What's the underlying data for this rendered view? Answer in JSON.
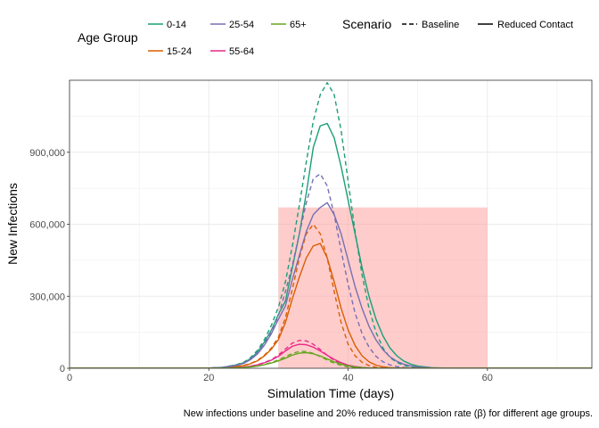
{
  "chart_data": {
    "type": "line",
    "title": "",
    "xlabel": "Simulation Time (days)",
    "ylabel": "New Infections",
    "caption": "New infections under baseline and 20% reduced transmission rate (β) for different age groups.",
    "xlim": [
      0,
      75
    ],
    "ylim": [
      0,
      1200000
    ],
    "x_ticks": [
      0,
      20,
      40,
      60
    ],
    "x_tick_labels": [
      "0",
      "20",
      "40",
      "60"
    ],
    "y_ticks": [
      0,
      300000,
      600000,
      900000
    ],
    "y_tick_labels": [
      "0",
      "300,000",
      "600,000",
      "900,000"
    ],
    "grid": true,
    "legend_position": "top",
    "legend": {
      "age_group_title": "Age Group",
      "scenario_title": "Scenario",
      "age_groups": [
        {
          "label": "0-14",
          "color": "#1b9e77"
        },
        {
          "label": "15-24",
          "color": "#d95f02"
        },
        {
          "label": "25-54",
          "color": "#7570b3"
        },
        {
          "label": "55-64",
          "color": "#e7298a"
        },
        {
          "label": "65+",
          "color": "#66a61e"
        }
      ],
      "scenarios": [
        {
          "label": "Baseline",
          "dash": "dashed"
        },
        {
          "label": "Reduced Contact",
          "dash": "solid"
        }
      ]
    },
    "highlight_region": {
      "x": [
        30,
        60
      ],
      "y": [
        0,
        670000
      ],
      "color": "#ff9999"
    },
    "x": [
      0,
      2,
      4,
      6,
      8,
      10,
      12,
      14,
      16,
      18,
      20,
      22,
      24,
      25,
      26,
      27,
      28,
      29,
      30,
      31,
      32,
      33,
      34,
      35,
      36,
      37,
      38,
      39,
      40,
      41,
      42,
      43,
      44,
      45,
      46,
      47,
      48,
      49,
      50,
      52,
      54,
      56,
      58,
      60,
      65,
      70,
      75
    ],
    "series": [
      {
        "name": "0-14",
        "scenario": "Baseline",
        "color": "#1b9e77",
        "values": [
          0,
          0,
          0,
          0,
          0,
          0,
          0,
          0,
          0,
          0,
          1000,
          4000,
          15000,
          25000,
          45000,
          75000,
          120000,
          180000,
          255000,
          360000,
          510000,
          680000,
          860000,
          1030000,
          1140000,
          1190000,
          1140000,
          990000,
          780000,
          570000,
          390000,
          250000,
          150000,
          85000,
          45000,
          24000,
          12000,
          6000,
          3000,
          800,
          200,
          0,
          0,
          0,
          0,
          0,
          0
        ]
      },
      {
        "name": "0-14",
        "scenario": "Reduced Contact",
        "color": "#1b9e77",
        "values": [
          0,
          0,
          0,
          0,
          0,
          0,
          0,
          0,
          0,
          0,
          1000,
          4000,
          14000,
          23000,
          40000,
          68000,
          110000,
          160000,
          225000,
          280000,
          420000,
          560000,
          730000,
          920000,
          1010000,
          1020000,
          960000,
          840000,
          700000,
          560000,
          420000,
          300000,
          205000,
          135000,
          85000,
          52000,
          30000,
          17000,
          9000,
          2500,
          600,
          0,
          0,
          0,
          0,
          0,
          0
        ]
      },
      {
        "name": "15-24",
        "scenario": "Baseline",
        "color": "#d95f02",
        "values": [
          0,
          0,
          0,
          0,
          0,
          0,
          0,
          0,
          0,
          0,
          500,
          2000,
          7000,
          12000,
          20000,
          33000,
          55000,
          85000,
          130000,
          210000,
          330000,
          460000,
          560000,
          600000,
          560000,
          460000,
          320000,
          190000,
          100000,
          52000,
          25000,
          11000,
          4000,
          1500,
          500,
          0,
          0,
          0,
          0,
          0,
          0,
          0,
          0,
          0,
          0,
          0,
          0
        ]
      },
      {
        "name": "15-24",
        "scenario": "Reduced Contact",
        "color": "#d95f02",
        "values": [
          0,
          0,
          0,
          0,
          0,
          0,
          0,
          0,
          0,
          0,
          500,
          2000,
          7000,
          11000,
          19000,
          31000,
          52000,
          80000,
          120000,
          190000,
          290000,
          380000,
          460000,
          510000,
          520000,
          460000,
          360000,
          250000,
          160000,
          95000,
          52000,
          27000,
          13000,
          6000,
          2500,
          900,
          300,
          0,
          0,
          0,
          0,
          0,
          0,
          0,
          0,
          0,
          0
        ]
      },
      {
        "name": "25-54",
        "scenario": "Baseline",
        "color": "#7570b3",
        "values": [
          0,
          0,
          0,
          0,
          0,
          0,
          0,
          0,
          0,
          0,
          1000,
          3500,
          13000,
          22000,
          40000,
          66000,
          105000,
          155000,
          220000,
          320000,
          430000,
          560000,
          690000,
          790000,
          810000,
          760000,
          640000,
          490000,
          350000,
          230000,
          145000,
          88000,
          50000,
          27000,
          14000,
          7000,
          3000,
          1200,
          400,
          0,
          0,
          0,
          0,
          0,
          0,
          0,
          0
        ]
      },
      {
        "name": "25-54",
        "scenario": "Reduced Contact",
        "color": "#7570b3",
        "values": [
          0,
          0,
          0,
          0,
          0,
          0,
          0,
          0,
          0,
          0,
          1000,
          3500,
          12000,
          20000,
          36000,
          60000,
          97000,
          145000,
          205000,
          260000,
          370000,
          470000,
          570000,
          640000,
          670000,
          690000,
          640000,
          560000,
          450000,
          340000,
          250000,
          175000,
          118000,
          77000,
          48000,
          29000,
          17000,
          9500,
          5000,
          1500,
          400,
          0,
          0,
          0,
          0,
          0,
          0
        ]
      },
      {
        "name": "55-64",
        "scenario": "Baseline",
        "color": "#e7298a",
        "values": [
          0,
          0,
          0,
          0,
          0,
          0,
          0,
          0,
          0,
          0,
          200,
          800,
          3000,
          5000,
          9000,
          15000,
          24000,
          36000,
          55000,
          80000,
          105000,
          116000,
          114000,
          100000,
          78000,
          54000,
          33000,
          18000,
          9000,
          4000,
          1500,
          500,
          0,
          0,
          0,
          0,
          0,
          0,
          0,
          0,
          0,
          0,
          0,
          0,
          0,
          0,
          0
        ]
      },
      {
        "name": "55-64",
        "scenario": "Reduced Contact",
        "color": "#e7298a",
        "values": [
          0,
          0,
          0,
          0,
          0,
          0,
          0,
          0,
          0,
          0,
          200,
          800,
          3000,
          5000,
          8500,
          14000,
          23000,
          34000,
          50000,
          72000,
          92000,
          100000,
          98000,
          88000,
          72000,
          54000,
          37000,
          23000,
          13000,
          7000,
          3500,
          1500,
          600,
          0,
          0,
          0,
          0,
          0,
          0,
          0,
          0,
          0,
          0,
          0,
          0,
          0,
          0
        ]
      },
      {
        "name": "65+",
        "scenario": "Baseline",
        "color": "#66a61e",
        "values": [
          0,
          0,
          0,
          0,
          0,
          0,
          0,
          0,
          0,
          0,
          100,
          500,
          2000,
          3500,
          6000,
          10000,
          16000,
          24000,
          35000,
          48000,
          62000,
          70000,
          70000,
          62000,
          49000,
          34000,
          21000,
          12000,
          6000,
          2800,
          1200,
          400,
          0,
          0,
          0,
          0,
          0,
          0,
          0,
          0,
          0,
          0,
          0,
          0,
          0,
          0,
          0
        ]
      },
      {
        "name": "65+",
        "scenario": "Reduced Contact",
        "color": "#66a61e",
        "values": [
          0,
          0,
          0,
          0,
          0,
          0,
          0,
          0,
          0,
          0,
          100,
          500,
          2000,
          3200,
          5500,
          9000,
          14500,
          22000,
          31000,
          42000,
          55000,
          63000,
          65000,
          60000,
          51000,
          39000,
          27000,
          17000,
          10000,
          5500,
          2800,
          1300,
          500,
          0,
          0,
          0,
          0,
          0,
          0,
          0,
          0,
          0,
          0,
          0,
          0,
          0,
          0
        ]
      }
    ]
  }
}
